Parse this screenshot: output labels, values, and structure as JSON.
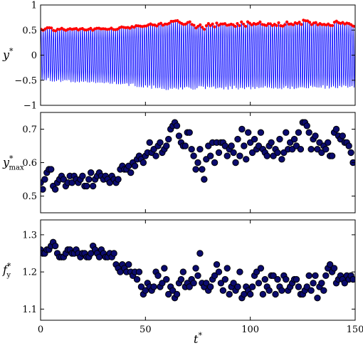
{
  "chart_data": [
    {
      "type": "line",
      "ylabel": "y*",
      "ylabel_base": "y",
      "ylabel_sup": "*",
      "ylabel_sub": "",
      "xlim": [
        0,
        150
      ],
      "ylim": [
        -1,
        1
      ],
      "yticks": [
        -1,
        -0.5,
        0,
        0.5,
        1
      ],
      "ytick_labels": [
        "−1",
        "−0.5",
        "0",
        "0.5",
        "1"
      ],
      "xticks": [
        0,
        50,
        100,
        150
      ],
      "xtick_labels": [
        "",
        "",
        "",
        ""
      ],
      "grid": false,
      "series": [
        {
          "kind": "oscillation",
          "color": "#0000ff",
          "description_values": "periodic signal, period ~1 t*, envelope follows peak series",
          "min_envelope": [
            [
              0,
              -0.48
            ],
            [
              10,
              -0.5
            ],
            [
              20,
              -0.52
            ],
            [
              30,
              -0.53
            ],
            [
              40,
              -0.58
            ],
            [
              50,
              -0.62
            ],
            [
              60,
              -0.66
            ],
            [
              70,
              -0.66
            ],
            [
              80,
              -0.64
            ],
            [
              90,
              -0.65
            ],
            [
              100,
              -0.65
            ],
            [
              110,
              -0.64
            ],
            [
              120,
              -0.65
            ],
            [
              130,
              -0.63
            ],
            [
              140,
              -0.64
            ],
            [
              150,
              -0.62
            ]
          ]
        },
        {
          "kind": "peaks",
          "color": "#ff0000"
        }
      ]
    },
    {
      "type": "scatter",
      "ylabel_base": "y",
      "ylabel_sup": "*",
      "ylabel_sub": "max",
      "xlim": [
        0,
        150
      ],
      "ylim": [
        0.45,
        0.75
      ],
      "yticks": [
        0.5,
        0.6,
        0.7
      ],
      "ytick_labels": [
        "0.5",
        "0.6",
        "0.7"
      ],
      "xticks": [
        0,
        50,
        100,
        150
      ],
      "xtick_labels": [
        "",
        "",
        "",
        ""
      ],
      "grid": false,
      "marker_fill": "#0b0b6e",
      "marker_edge": "#000000",
      "x": [
        0,
        1,
        2,
        3,
        4,
        5,
        6,
        7,
        8,
        9,
        10,
        11,
        12,
        13,
        14,
        15,
        16,
        17,
        18,
        19,
        20,
        21,
        22,
        23,
        24,
        25,
        26,
        27,
        28,
        29,
        30,
        31,
        32,
        33,
        34,
        35,
        36,
        37,
        38,
        39,
        40,
        41,
        42,
        43,
        44,
        45,
        46,
        47,
        48,
        49,
        50,
        51,
        52,
        53,
        54,
        55,
        56,
        57,
        58,
        59,
        60,
        61,
        62,
        63,
        64,
        65,
        66,
        67,
        68,
        69,
        70,
        71,
        72,
        73,
        74,
        75,
        76,
        77,
        78,
        79,
        80,
        81,
        82,
        83,
        84,
        85,
        86,
        87,
        88,
        89,
        90,
        91,
        92,
        93,
        94,
        95,
        96,
        97,
        98,
        99,
        100,
        101,
        102,
        103,
        104,
        105,
        106,
        107,
        108,
        109,
        110,
        111,
        112,
        113,
        114,
        115,
        116,
        117,
        118,
        119,
        120,
        121,
        122,
        123,
        124,
        125,
        126,
        127,
        128,
        129,
        130,
        131,
        132,
        133,
        134,
        135,
        136,
        137,
        138,
        139,
        140,
        141,
        142,
        143,
        144,
        145,
        146,
        147,
        148,
        149
      ],
      "y": [
        0.54,
        0.52,
        0.55,
        0.57,
        0.58,
        0.58,
        0.53,
        0.52,
        0.54,
        0.55,
        0.56,
        0.55,
        0.53,
        0.54,
        0.56,
        0.54,
        0.56,
        0.55,
        0.54,
        0.55,
        0.56,
        0.53,
        0.53,
        0.55,
        0.57,
        0.53,
        0.55,
        0.56,
        0.57,
        0.56,
        0.55,
        0.56,
        0.55,
        0.54,
        0.56,
        0.55,
        0.54,
        0.55,
        0.58,
        0.59,
        0.58,
        0.58,
        0.59,
        0.57,
        0.6,
        0.59,
        0.61,
        0.62,
        0.61,
        0.6,
        0.62,
        0.63,
        0.66,
        0.63,
        0.64,
        0.62,
        0.65,
        0.66,
        0.63,
        0.64,
        0.65,
        0.67,
        0.7,
        0.71,
        0.72,
        0.71,
        0.68,
        0.66,
        0.65,
        0.65,
        0.69,
        0.69,
        0.64,
        0.62,
        0.58,
        0.6,
        0.64,
        0.58,
        0.55,
        0.61,
        0.65,
        0.62,
        0.66,
        0.6,
        0.66,
        0.63,
        0.66,
        0.66,
        0.65,
        0.62,
        0.64,
        0.65,
        0.63,
        0.6,
        0.67,
        0.62,
        0.7,
        0.65,
        0.61,
        0.69,
        0.66,
        0.63,
        0.67,
        0.64,
        0.65,
        0.69,
        0.64,
        0.63,
        0.62,
        0.65,
        0.66,
        0.62,
        0.64,
        0.63,
        0.67,
        0.61,
        0.63,
        0.69,
        0.64,
        0.66,
        0.64,
        0.67,
        0.65,
        0.69,
        0.64,
        0.72,
        0.72,
        0.71,
        0.69,
        0.64,
        0.67,
        0.68,
        0.64,
        0.66,
        0.63,
        0.65,
        0.64,
        0.66,
        0.62,
        0.62,
        0.69,
        0.7,
        0.68,
        0.67,
        0.68,
        0.66,
        0.66,
        0.65,
        0.63,
        0.6
      ]
    },
    {
      "type": "scatter",
      "ylabel_base": "f",
      "ylabel_sup": "*",
      "ylabel_sub": "y",
      "xlabel": "t*",
      "xlabel_base": "t",
      "xlabel_sup": "*",
      "xlim": [
        0,
        150
      ],
      "ylim": [
        1.07,
        1.34
      ],
      "yticks": [
        1.1,
        1.2,
        1.3
      ],
      "ytick_labels": [
        "1.1",
        "1.2",
        "1.3"
      ],
      "xticks": [
        0,
        50,
        100,
        150
      ],
      "xtick_labels": [
        "0",
        "50",
        "100",
        "150"
      ],
      "grid": false,
      "marker_fill": "#0b0b6e",
      "marker_edge": "#000000",
      "x": [
        0,
        1,
        2,
        3,
        4,
        5,
        6,
        7,
        8,
        9,
        10,
        11,
        12,
        13,
        14,
        15,
        16,
        17,
        18,
        19,
        20,
        21,
        22,
        23,
        24,
        25,
        26,
        27,
        28,
        29,
        30,
        31,
        32,
        33,
        34,
        35,
        36,
        37,
        38,
        39,
        40,
        41,
        42,
        43,
        44,
        45,
        46,
        47,
        48,
        49,
        50,
        51,
        52,
        53,
        54,
        55,
        56,
        57,
        58,
        59,
        60,
        61,
        62,
        63,
        64,
        65,
        66,
        67,
        68,
        69,
        70,
        71,
        72,
        73,
        74,
        75,
        76,
        77,
        78,
        79,
        80,
        81,
        82,
        83,
        84,
        85,
        86,
        87,
        88,
        89,
        90,
        91,
        92,
        93,
        94,
        95,
        96,
        97,
        98,
        99,
        100,
        101,
        102,
        103,
        104,
        105,
        106,
        107,
        108,
        109,
        110,
        111,
        112,
        113,
        114,
        115,
        116,
        117,
        118,
        119,
        120,
        121,
        122,
        123,
        124,
        125,
        126,
        127,
        128,
        129,
        130,
        131,
        132,
        133,
        134,
        135,
        136,
        137,
        138,
        139,
        140,
        141,
        142,
        143,
        144,
        145,
        146,
        147,
        148,
        149
      ],
      "y": [
        1.26,
        1.25,
        1.25,
        1.26,
        1.26,
        1.27,
        1.28,
        1.27,
        1.25,
        1.24,
        1.24,
        1.24,
        1.25,
        1.26,
        1.26,
        1.25,
        1.25,
        1.26,
        1.25,
        1.24,
        1.25,
        1.25,
        1.24,
        1.24,
        1.25,
        1.27,
        1.26,
        1.25,
        1.24,
        1.26,
        1.25,
        1.24,
        1.24,
        1.25,
        1.24,
        1.25,
        1.22,
        1.21,
        1.2,
        1.22,
        1.21,
        1.2,
        1.22,
        1.2,
        1.19,
        1.2,
        1.18,
        1.2,
        1.16,
        1.14,
        1.15,
        1.17,
        1.16,
        1.15,
        1.16,
        1.2,
        1.19,
        1.16,
        1.17,
        1.21,
        1.18,
        1.14,
        1.16,
        1.15,
        1.13,
        1.14,
        1.17,
        1.18,
        1.2,
        1.16,
        1.17,
        1.16,
        1.18,
        1.17,
        1.21,
        1.19,
        1.25,
        1.17,
        1.16,
        1.17,
        1.15,
        1.16,
        1.18,
        1.19,
        1.22,
        1.2,
        1.17,
        1.15,
        1.18,
        1.21,
        1.14,
        1.16,
        1.17,
        1.15,
        1.16,
        1.2,
        1.13,
        1.14,
        1.16,
        1.15,
        1.14,
        1.16,
        1.19,
        1.2,
        1.17,
        1.21,
        1.14,
        1.18,
        1.16,
        1.15,
        1.19,
        1.19,
        1.14,
        1.18,
        1.16,
        1.15,
        1.19,
        1.18,
        1.15,
        1.16,
        1.17,
        1.18,
        1.18,
        1.16,
        1.14,
        1.14,
        1.15,
        1.16,
        1.19,
        1.15,
        1.17,
        1.19,
        1.13,
        1.16,
        1.17,
        1.15,
        1.19,
        1.21,
        1.22,
        1.2,
        1.21,
        1.17,
        1.18,
        1.19,
        1.18,
        1.17,
        1.19,
        1.18,
        1.19,
        1.18
      ]
    }
  ]
}
